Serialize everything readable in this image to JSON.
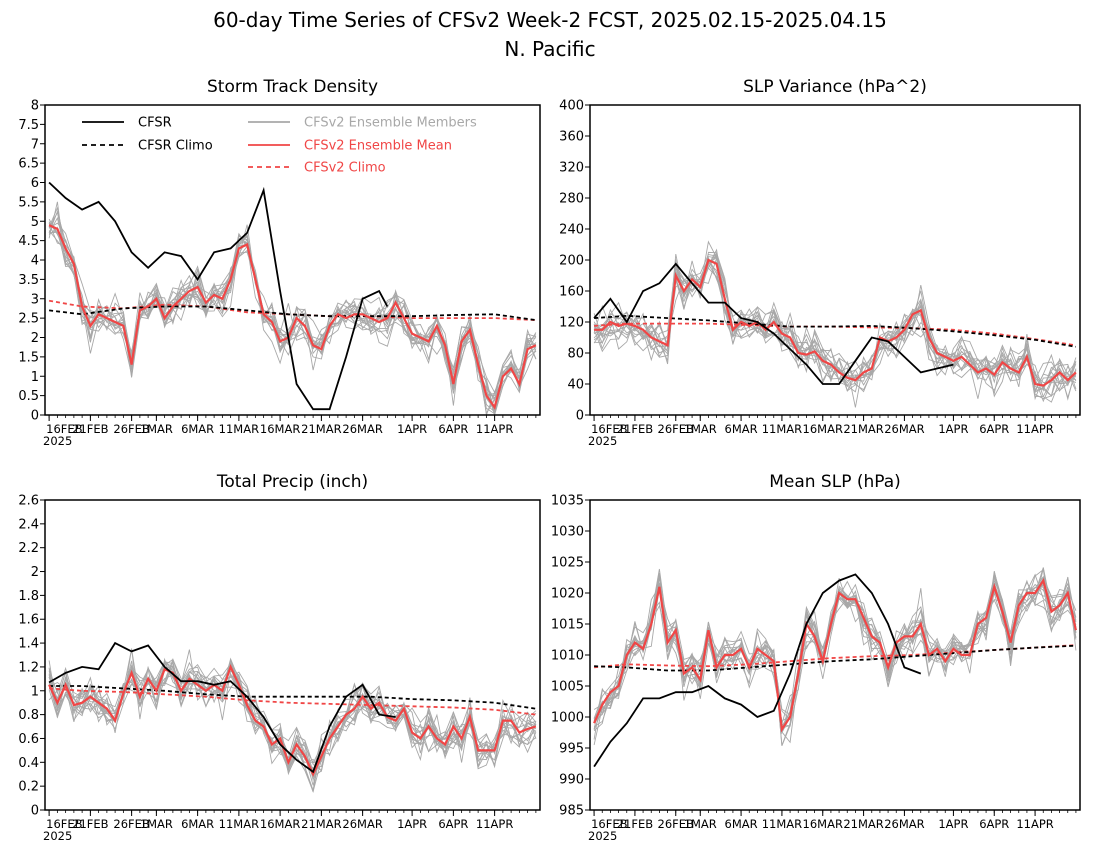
{
  "figure": {
    "title_line1": "60-day Time Series of CFSv2 Week-2 FCST, 2025.02.15-2025.04.15",
    "title_line2": "N. Pacific"
  },
  "colors": {
    "cfsr": "#000000",
    "members": "#a8a8a8",
    "ens_mean": "#f04646",
    "cfsv2_climo": "#f04646"
  },
  "legend": {
    "cfsr": "CFSR",
    "cfsr_climo": "CFSR Climo",
    "members": "CFSv2 Ensemble Members",
    "ens_mean": "CFSv2 Ensemble Mean",
    "cfsv2_climo": "CFSv2 Climo"
  },
  "x_axis": {
    "ticks": [
      {
        "day": 1,
        "label": "16FEB"
      },
      {
        "day": 6,
        "label": "21FEB"
      },
      {
        "day": 11,
        "label": "26FEB"
      },
      {
        "day": 14,
        "label": "1MAR"
      },
      {
        "day": 19,
        "label": "6MAR"
      },
      {
        "day": 24,
        "label": "11MAR"
      },
      {
        "day": 29,
        "label": "16MAR"
      },
      {
        "day": 34,
        "label": "21MAR"
      },
      {
        "day": 39,
        "label": "26MAR"
      },
      {
        "day": 45,
        "label": "1APR"
      },
      {
        "day": 50,
        "label": "6APR"
      },
      {
        "day": 55,
        "label": "11APR"
      }
    ],
    "year_label": "2025",
    "range": [
      1,
      60
    ]
  },
  "chart_data": [
    {
      "type": "line",
      "title": "Storm Track Density",
      "ylim": [
        0,
        8
      ],
      "yticks": [
        0,
        0.5,
        1,
        1.5,
        2,
        2.5,
        3,
        3.5,
        4,
        4.5,
        5,
        5.5,
        6,
        6.5,
        7,
        7.5,
        8
      ],
      "ytick_labels": [
        "0",
        "0.5",
        "1",
        "1.5",
        "2",
        "2.5",
        "3",
        "3.5",
        "4",
        "4.5",
        "5",
        "5.5",
        "6",
        "6.5",
        "7",
        "7.5",
        "8"
      ],
      "show_legend": true,
      "cfsr": {
        "x": [
          1,
          3,
          5,
          7,
          9,
          11,
          13,
          15,
          17,
          19,
          21,
          23,
          25,
          27,
          29,
          31,
          33,
          35,
          37,
          39,
          41,
          42
        ],
        "y": [
          6.0,
          5.6,
          5.3,
          5.5,
          5.0,
          4.2,
          3.8,
          4.2,
          4.1,
          3.5,
          4.2,
          4.3,
          4.7,
          5.8,
          3.2,
          0.8,
          0.15,
          0.15,
          1.5,
          3.0,
          3.2,
          2.8
        ]
      },
      "cfsr_climo": {
        "x": [
          1,
          5,
          10,
          15,
          20,
          25,
          30,
          35,
          40,
          45,
          50,
          55,
          60
        ],
        "y": [
          2.7,
          2.6,
          2.75,
          2.8,
          2.8,
          2.7,
          2.6,
          2.55,
          2.55,
          2.55,
          2.58,
          2.6,
          2.45
        ]
      },
      "ens_mean": {
        "x": [
          1,
          2,
          3,
          4,
          5,
          6,
          7,
          8,
          9,
          10,
          11,
          12,
          13,
          14,
          15,
          16,
          17,
          18,
          19,
          20,
          21,
          22,
          23,
          24,
          25,
          26,
          27,
          28,
          29,
          30,
          31,
          32,
          33,
          34,
          35,
          36,
          37,
          38,
          39,
          40,
          41,
          42,
          43,
          44,
          45,
          46,
          47,
          48,
          49,
          50,
          51,
          52,
          53,
          54,
          55,
          56,
          57,
          58,
          59,
          60
        ],
        "y": [
          4.9,
          4.8,
          4.3,
          3.9,
          2.8,
          2.3,
          2.6,
          2.5,
          2.4,
          2.3,
          1.3,
          2.7,
          2.8,
          3.0,
          2.5,
          2.8,
          3.0,
          3.2,
          3.3,
          2.9,
          3.1,
          3.0,
          3.5,
          4.3,
          4.4,
          3.5,
          2.6,
          2.4,
          1.9,
          2.0,
          2.5,
          2.3,
          1.8,
          1.7,
          2.3,
          2.6,
          2.5,
          2.6,
          2.6,
          2.5,
          2.4,
          2.5,
          2.9,
          2.5,
          2.1,
          2.0,
          1.9,
          2.3,
          1.8,
          0.8,
          1.9,
          2.2,
          1.3,
          0.5,
          0.2,
          1.0,
          1.2,
          0.8,
          1.7,
          1.8
        ]
      },
      "cfsv2_climo": {
        "x": [
          1,
          5,
          10,
          15,
          20,
          25,
          30,
          35,
          40,
          45,
          50,
          55,
          60
        ],
        "y": [
          2.95,
          2.8,
          2.75,
          2.85,
          2.8,
          2.65,
          2.6,
          2.55,
          2.55,
          2.5,
          2.5,
          2.5,
          2.45
        ]
      }
    },
    {
      "type": "line",
      "title": "SLP Variance (hPa^2)",
      "ylim": [
        0,
        400
      ],
      "yticks": [
        0,
        40,
        80,
        120,
        160,
        200,
        240,
        280,
        320,
        360,
        400
      ],
      "ytick_labels": [
        "0",
        "40",
        "80",
        "120",
        "160",
        "200",
        "240",
        "280",
        "320",
        "360",
        "400"
      ],
      "show_legend": false,
      "cfsr": {
        "x": [
          1,
          3,
          5,
          7,
          9,
          11,
          13,
          15,
          17,
          19,
          21,
          23,
          25,
          27,
          29,
          31,
          33,
          35,
          37,
          39,
          41,
          43,
          45
        ],
        "y": [
          125,
          150,
          120,
          160,
          170,
          195,
          170,
          145,
          145,
          125,
          120,
          105,
          85,
          65,
          40,
          40,
          70,
          100,
          95,
          75,
          55,
          60,
          65
        ]
      },
      "cfsr_climo": {
        "x": [
          1,
          5,
          10,
          15,
          20,
          25,
          30,
          35,
          40,
          45,
          50,
          55,
          60
        ],
        "y": [
          125,
          128,
          125,
          122,
          118,
          114,
          114,
          115,
          112,
          108,
          103,
          97,
          88
        ]
      },
      "ens_mean": {
        "x": [
          1,
          2,
          3,
          4,
          5,
          6,
          7,
          8,
          9,
          10,
          11,
          12,
          13,
          14,
          15,
          16,
          17,
          18,
          19,
          20,
          21,
          22,
          23,
          24,
          25,
          26,
          27,
          28,
          29,
          30,
          31,
          32,
          33,
          34,
          35,
          36,
          37,
          38,
          39,
          40,
          41,
          42,
          43,
          44,
          45,
          46,
          47,
          48,
          49,
          50,
          51,
          52,
          53,
          54,
          55,
          56,
          57,
          58,
          59,
          60
        ],
        "y": [
          110,
          110,
          120,
          115,
          118,
          115,
          110,
          100,
          95,
          90,
          180,
          160,
          175,
          165,
          200,
          195,
          150,
          110,
          120,
          115,
          120,
          110,
          120,
          105,
          100,
          80,
          78,
          82,
          70,
          65,
          55,
          48,
          45,
          55,
          60,
          100,
          95,
          100,
          110,
          130,
          135,
          100,
          80,
          75,
          70,
          75,
          65,
          55,
          60,
          52,
          68,
          60,
          55,
          75,
          40,
          38,
          45,
          55,
          45,
          55
        ]
      },
      "cfsv2_climo": {
        "x": [
          1,
          5,
          10,
          15,
          20,
          25,
          30,
          35,
          40,
          45,
          50,
          55,
          60
        ],
        "y": [
          115,
          118,
          118,
          118,
          116,
          114,
          114,
          113,
          112,
          110,
          105,
          98,
          90
        ]
      }
    },
    {
      "type": "line",
      "title": "Total Precip (inch)",
      "ylim": [
        0,
        2.6
      ],
      "yticks": [
        0,
        0.2,
        0.4,
        0.6,
        0.8,
        1,
        1.2,
        1.4,
        1.6,
        1.8,
        2,
        2.2,
        2.4,
        2.6
      ],
      "ytick_labels": [
        "0",
        "0.2",
        "0.4",
        "0.6",
        "0.8",
        "1",
        "1.2",
        "1.4",
        "1.6",
        "1.8",
        "2",
        "2.2",
        "2.4",
        "2.6"
      ],
      "show_legend": false,
      "cfsr": {
        "x": [
          1,
          3,
          5,
          7,
          9,
          11,
          13,
          15,
          17,
          19,
          21,
          23,
          25,
          27,
          29,
          31,
          33,
          35,
          37,
          39,
          41,
          43
        ],
        "y": [
          1.07,
          1.15,
          1.2,
          1.18,
          1.4,
          1.33,
          1.38,
          1.2,
          1.08,
          1.08,
          1.05,
          1.08,
          0.95,
          0.78,
          0.55,
          0.42,
          0.32,
          0.7,
          0.95,
          1.05,
          0.8,
          0.78
        ]
      },
      "cfsr_climo": {
        "x": [
          1,
          5,
          10,
          15,
          20,
          25,
          30,
          35,
          40,
          45,
          50,
          55,
          60
        ],
        "y": [
          1.04,
          1.04,
          1.02,
          1.0,
          0.97,
          0.95,
          0.95,
          0.95,
          0.95,
          0.93,
          0.92,
          0.9,
          0.85
        ]
      },
      "ens_mean": {
        "x": [
          1,
          2,
          3,
          4,
          5,
          6,
          7,
          8,
          9,
          10,
          11,
          12,
          13,
          14,
          15,
          16,
          17,
          18,
          19,
          20,
          21,
          22,
          23,
          24,
          25,
          26,
          27,
          28,
          29,
          30,
          31,
          32,
          33,
          34,
          35,
          36,
          37,
          38,
          39,
          40,
          41,
          42,
          43,
          44,
          45,
          46,
          47,
          48,
          49,
          50,
          51,
          52,
          53,
          54,
          55,
          56,
          57,
          58,
          59,
          60
        ],
        "y": [
          1.05,
          0.9,
          1.05,
          0.88,
          0.9,
          0.95,
          0.9,
          0.85,
          0.75,
          0.98,
          1.15,
          0.95,
          1.1,
          1.0,
          1.18,
          1.15,
          1.0,
          1.1,
          1.05,
          1.0,
          1.05,
          1.0,
          1.2,
          1.05,
          0.88,
          0.75,
          0.7,
          0.55,
          0.6,
          0.4,
          0.55,
          0.45,
          0.3,
          0.45,
          0.6,
          0.7,
          0.8,
          0.85,
          0.95,
          0.85,
          0.9,
          0.78,
          0.75,
          0.85,
          0.65,
          0.6,
          0.7,
          0.6,
          0.55,
          0.7,
          0.6,
          0.78,
          0.5,
          0.5,
          0.5,
          0.75,
          0.75,
          0.65,
          0.68,
          0.7
        ]
      },
      "cfsv2_climo": {
        "x": [
          1,
          5,
          10,
          15,
          20,
          25,
          30,
          35,
          40,
          45,
          50,
          55,
          60
        ],
        "y": [
          1.02,
          1.0,
          0.99,
          0.97,
          0.95,
          0.92,
          0.9,
          0.89,
          0.88,
          0.87,
          0.86,
          0.84,
          0.8
        ]
      }
    },
    {
      "type": "line",
      "title": "Mean SLP (hPa)",
      "ylim": [
        985,
        1035
      ],
      "yticks": [
        985,
        990,
        995,
        1000,
        1005,
        1010,
        1015,
        1020,
        1025,
        1030,
        1035
      ],
      "ytick_labels": [
        "985",
        "990",
        "995",
        "1000",
        "1005",
        "1010",
        "1015",
        "1020",
        "1025",
        "1030",
        "1035"
      ],
      "show_legend": false,
      "cfsr": {
        "x": [
          1,
          3,
          5,
          7,
          9,
          11,
          13,
          15,
          17,
          19,
          21,
          23,
          25,
          27,
          29,
          31,
          33,
          35,
          37,
          39,
          41
        ],
        "y": [
          992,
          996,
          999,
          1003,
          1003,
          1004,
          1004,
          1005,
          1003,
          1002,
          1000,
          1001,
          1007,
          1015,
          1020,
          1022,
          1023,
          1020,
          1015,
          1008,
          1007
        ]
      },
      "cfsr_climo": {
        "x": [
          1,
          5,
          10,
          15,
          20,
          25,
          30,
          35,
          40,
          45,
          50,
          55,
          60
        ],
        "y": [
          1008.2,
          1008.0,
          1007.5,
          1007.5,
          1008.0,
          1008.5,
          1009.0,
          1009.3,
          1009.8,
          1010.3,
          1010.8,
          1011.2,
          1011.5
        ]
      },
      "ens_mean": {
        "x": [
          1,
          2,
          3,
          4,
          5,
          6,
          7,
          8,
          9,
          10,
          11,
          12,
          13,
          14,
          15,
          16,
          17,
          18,
          19,
          20,
          21,
          22,
          23,
          24,
          25,
          26,
          27,
          28,
          29,
          30,
          31,
          32,
          33,
          34,
          35,
          36,
          37,
          38,
          39,
          40,
          41,
          42,
          43,
          44,
          45,
          46,
          47,
          48,
          49,
          50,
          51,
          52,
          53,
          54,
          55,
          56,
          57,
          58,
          59,
          60
        ],
        "y": [
          999,
          1002,
          1004,
          1005,
          1010,
          1012,
          1011,
          1015,
          1021,
          1012,
          1014,
          1007,
          1008,
          1006,
          1014,
          1008,
          1010,
          1010,
          1011,
          1008,
          1011,
          1010,
          1009,
          998,
          1000,
          1007,
          1015,
          1013,
          1009,
          1015,
          1020,
          1019,
          1019,
          1016,
          1013,
          1012,
          1008,
          1012,
          1013,
          1013,
          1015,
          1010,
          1011,
          1009,
          1011,
          1010,
          1010,
          1015,
          1016,
          1021,
          1017,
          1012,
          1018,
          1020,
          1020,
          1022,
          1017,
          1018,
          1020,
          1014
        ]
      },
      "cfsv2_climo": {
        "x": [
          1,
          5,
          10,
          15,
          20,
          25,
          30,
          35,
          40,
          45,
          50,
          55,
          60
        ],
        "y": [
          1008.0,
          1008.5,
          1008.3,
          1008.2,
          1008.5,
          1009.0,
          1009.5,
          1009.8,
          1010.0,
          1010.4,
          1010.8,
          1011.2,
          1011.6
        ]
      }
    }
  ]
}
